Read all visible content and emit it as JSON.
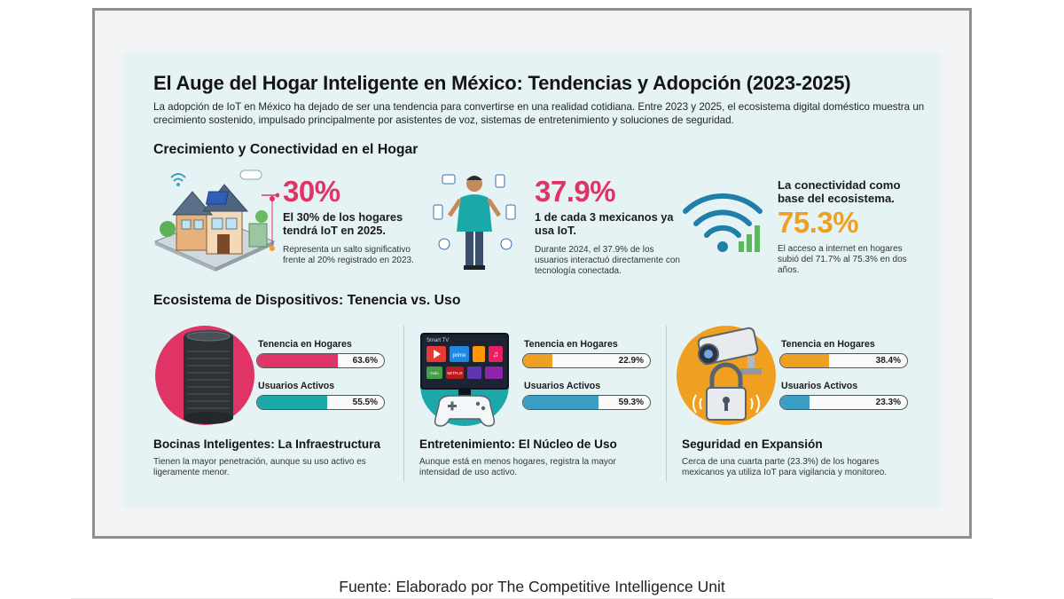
{
  "title": "El Auge del Hogar Inteligente en México: Tendencias y Adopción (2023-2025)",
  "intro": "La adopción de IoT en México ha dejado de ser una tendencia para convertirse en una realidad cotidiana. Entre 2023 y 2025, el ecosistema digital doméstico muestra un crecimiento sostenido, impulsado principalmente por asistentes de voz, sistemas de entretenimiento y soluciones de seguridad.",
  "section1": {
    "heading": "Crecimiento y Conectividad en el Hogar",
    "stats": [
      {
        "big": "30%",
        "head": "El 30% de los hogares tendrá IoT en 2025.",
        "note": "Representa un salto significativo frente al 20% registrado en 2023."
      },
      {
        "big": "37.9%",
        "head": "1 de cada 3 mexicanos ya usa IoT.",
        "note": "Durante 2024, el 37.9% de los usuarios interactuó directamente con tecnología conectada."
      },
      {
        "big": "75.3%",
        "head": "La conectividad como base del ecosistema.",
        "note": "El acceso a internet en hogares subió del 71.7% al 75.3% en dos años."
      }
    ]
  },
  "section2": {
    "heading": "Ecosistema de Dispositivos: Tenencia vs. Uso"
  },
  "tv_screen": {
    "brand": "Smart TV",
    "apps": [
      "prime",
      "Hulu",
      "NETFLIX"
    ]
  },
  "colors": {
    "accent_red": "#e03466",
    "accent_orange": "#f0a020",
    "accent_teal": "#1aa9a8",
    "accent_blue": "#3a9fc4"
  },
  "chart_data": {
    "type": "bar",
    "categories": [
      "Tenencia en Hogares",
      "Usuarios Activos"
    ],
    "xlim": [
      0,
      100
    ],
    "unit": "%",
    "groups": [
      {
        "title": "Bocinas Inteligentes: La Infraestructura",
        "desc": "Tienen la mayor penetración, aunque su uso activo es ligeramente menor.",
        "values": [
          63.6,
          55.5
        ],
        "labels": [
          "63.6%",
          "55.5%"
        ],
        "colors": [
          "#e03466",
          "#1aa9a8"
        ]
      },
      {
        "title": "Entretenimiento: El Núcleo de Uso",
        "desc": "Aunque está en menos hogares, registra la mayor intensidad de uso activo.",
        "values": [
          22.9,
          59.3
        ],
        "labels": [
          "22.9%",
          "59.3%"
        ],
        "colors": [
          "#f0a020",
          "#3a9fc4"
        ]
      },
      {
        "title": "Seguridad en Expansión",
        "desc": "Cerca de una cuarta parte (23.3%) de los hogares mexicanos ya utiliza IoT para vigilancia y monitoreo.",
        "values": [
          38.4,
          23.3
        ],
        "labels": [
          "38.4%",
          "23.3%"
        ],
        "colors": [
          "#f0a020",
          "#3a9fc4"
        ]
      }
    ]
  },
  "footer": "Fuente: Elaborado por The Competitive Intelligence Unit"
}
